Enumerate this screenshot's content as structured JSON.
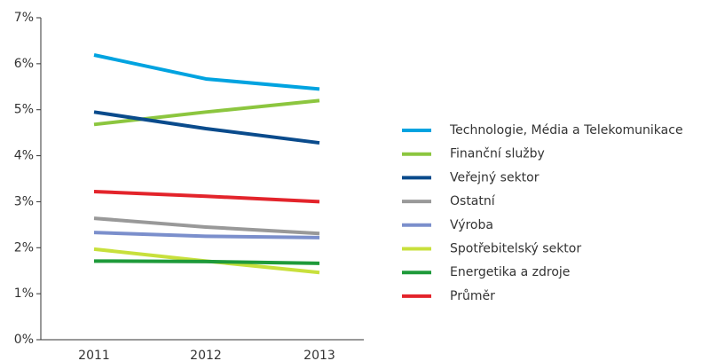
{
  "chart_data": {
    "type": "line",
    "categories": [
      "2011",
      "2012",
      "2013"
    ],
    "ylim": [
      0,
      7
    ],
    "yticks": [
      {
        "value": 0,
        "label": "0%"
      },
      {
        "value": 1,
        "label": "1%"
      },
      {
        "value": 2,
        "label": "2%"
      },
      {
        "value": 3,
        "label": "3%"
      },
      {
        "value": 4,
        "label": "4%"
      },
      {
        "value": 5,
        "label": "5%"
      },
      {
        "value": 6,
        "label": "6%"
      },
      {
        "value": 7,
        "label": "7%"
      }
    ],
    "legend": "right",
    "series": [
      {
        "name": "Technologie, Média a Telekomunikace",
        "color": "#00a3e0",
        "values": [
          6.19,
          5.67,
          5.45
        ]
      },
      {
        "name": "Finanční služby",
        "color": "#8cc63f",
        "values": [
          4.68,
          4.95,
          5.2
        ]
      },
      {
        "name": "Veřejný sektor",
        "color": "#0a4b8c",
        "values": [
          4.95,
          4.59,
          4.28
        ]
      },
      {
        "name": "Ostatní",
        "color": "#999999",
        "values": [
          2.64,
          2.45,
          2.31
        ]
      },
      {
        "name": "Výroba",
        "color": "#7b8fcc",
        "values": [
          2.33,
          2.25,
          2.22
        ]
      },
      {
        "name": "Spotřebitelský sektor",
        "color": "#c8e03c",
        "values": [
          1.97,
          1.71,
          1.46
        ]
      },
      {
        "name": "Energetika a zdroje",
        "color": "#1e9a3a",
        "values": [
          1.71,
          1.7,
          1.66
        ]
      },
      {
        "name": "Průměr",
        "color": "#e3242b",
        "values": [
          3.22,
          3.12,
          3.0
        ]
      }
    ]
  }
}
